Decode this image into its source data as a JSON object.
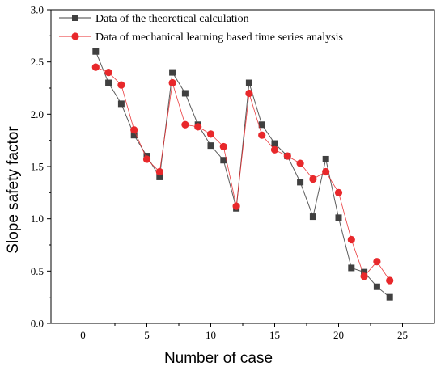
{
  "chart_data": {
    "type": "line",
    "xlabel": "Number of case",
    "ylabel": "Slope safety factor",
    "xlim": [
      -2.5,
      27.5
    ],
    "ylim": [
      0.0,
      3.0
    ],
    "xticks": [
      0,
      5,
      10,
      15,
      20,
      25
    ],
    "yticks": [
      0.0,
      0.5,
      1.0,
      1.5,
      2.0,
      2.5,
      3.0
    ],
    "xtick_labels": [
      "0",
      "5",
      "10",
      "15",
      "20",
      "25"
    ],
    "ytick_labels": [
      "0.0",
      "0.5",
      "1.0",
      "1.5",
      "2.0",
      "2.5",
      "3.0"
    ],
    "grid": false,
    "legend_position": "top-left",
    "x": [
      1,
      2,
      3,
      4,
      5,
      6,
      7,
      8,
      9,
      10,
      11,
      12,
      13,
      14,
      15,
      16,
      17,
      18,
      19,
      20,
      21,
      22,
      23,
      24
    ],
    "series": [
      {
        "name": "Data of the theoretical calculation",
        "marker": "square",
        "color": "#404040",
        "values": [
          2.6,
          2.3,
          2.1,
          1.8,
          1.6,
          1.4,
          2.4,
          2.2,
          1.9,
          1.7,
          1.56,
          1.1,
          2.3,
          1.9,
          1.72,
          1.6,
          1.35,
          1.02,
          1.57,
          1.01,
          0.53,
          0.49,
          0.35,
          0.25
        ]
      },
      {
        "name": "Data of mechanical learning based time series analysis",
        "marker": "circle",
        "color": "#e8282b",
        "values": [
          2.45,
          2.4,
          2.28,
          1.85,
          1.57,
          1.45,
          2.3,
          1.9,
          1.88,
          1.81,
          1.69,
          1.12,
          2.2,
          1.8,
          1.66,
          1.6,
          1.53,
          1.38,
          1.45,
          1.25,
          0.8,
          0.45,
          0.59,
          0.41
        ]
      }
    ]
  }
}
